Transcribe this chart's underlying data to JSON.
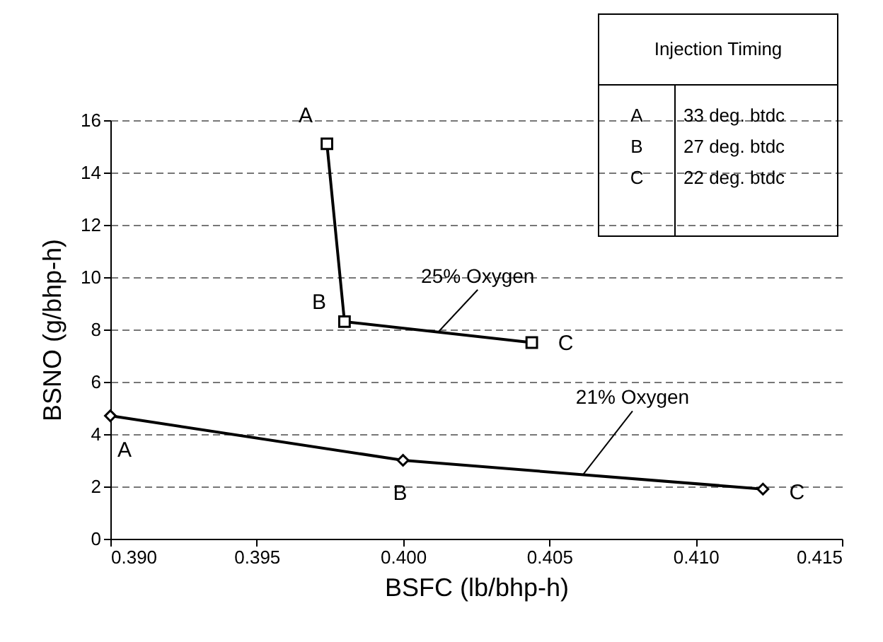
{
  "chart_data": {
    "type": "line",
    "xlabel": "BSFC (lb/bhp-h)",
    "ylabel": "BSNO (g/bhp-h)",
    "xlim": [
      0.39,
      0.415
    ],
    "ylim": [
      0,
      16
    ],
    "xticks": [
      {
        "value": 0.39,
        "label": "0.390"
      },
      {
        "value": 0.395,
        "label": "0.395"
      },
      {
        "value": 0.4,
        "label": "0.400"
      },
      {
        "value": 0.405,
        "label": "0.405"
      },
      {
        "value": 0.41,
        "label": "0.410"
      },
      {
        "value": 0.415,
        "label": "0.415"
      }
    ],
    "yticks": [
      0,
      2,
      4,
      6,
      8,
      10,
      12,
      14,
      16
    ],
    "grid": "y",
    "line_style": "solid",
    "series": [
      {
        "name": "25% Oxygen",
        "color": "#000000",
        "marker": "square",
        "x": [
          0.3974,
          0.398,
          0.4044
        ],
        "values": [
          15.1,
          8.3,
          7.5
        ]
      },
      {
        "name": "21% Oxygen",
        "color": "#000000",
        "marker": "diamond",
        "x": [
          0.39,
          0.4,
          0.4123
        ],
        "values": [
          4.7,
          3.0,
          1.9
        ]
      }
    ],
    "annotations": [
      "Injection Timing",
      "A",
      "33 deg. btdc",
      "B",
      "27 deg. btdc",
      "C",
      "22 deg. btdc",
      {
        "text": "A",
        "x": 0.3974,
        "y": 15.1
      },
      {
        "text": "B",
        "x": 0.398,
        "y": 8.3
      },
      {
        "text": "C",
        "x": 0.4044,
        "y": 7.5
      },
      {
        "text": "A",
        "x": 0.39,
        "y": 4.7
      },
      {
        "text": "B",
        "x": 0.4,
        "y": 3.0
      },
      {
        "text": "C",
        "x": 0.4123,
        "y": 1.9
      }
    ]
  }
}
